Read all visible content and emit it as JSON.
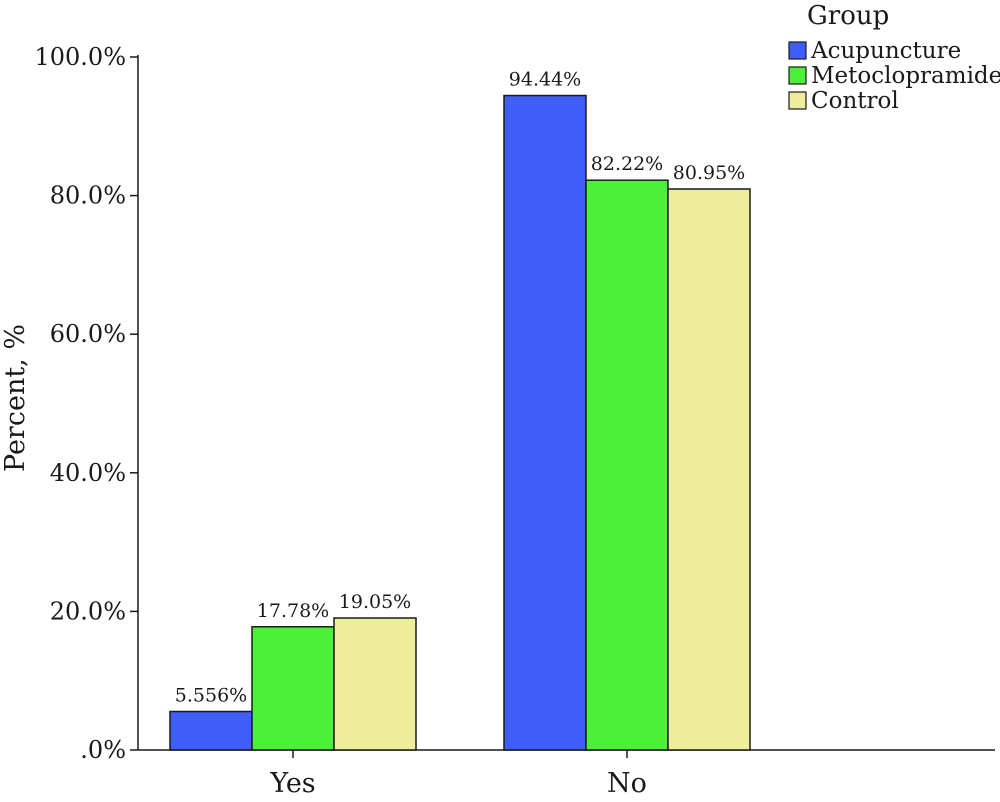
{
  "chart_data": {
    "type": "bar",
    "categories": [
      "Yes",
      "No"
    ],
    "series": [
      {
        "name": "Acupuncture",
        "values": [
          5.556,
          94.44
        ],
        "labels": [
          "5.556%",
          "94.44%"
        ],
        "color": "#3f5ef7"
      },
      {
        "name": "Metoclopramide",
        "values": [
          17.78,
          82.22
        ],
        "labels": [
          "17.78%",
          "82.22%"
        ],
        "color": "#4cf03a"
      },
      {
        "name": "Control",
        "values": [
          19.05,
          80.95
        ],
        "labels": [
          "19.05%",
          "80.95%"
        ],
        "color": "#eeee9a"
      }
    ],
    "ylabel": "Percent, %",
    "ylim": [
      0,
      100
    ],
    "yticks": [
      0,
      20,
      40,
      60,
      80,
      100
    ],
    "ytick_labels": [
      ".0%",
      "20.0%",
      "40.0%",
      "60.0%",
      "80.0%",
      "100.0%"
    ],
    "legend": {
      "title": "Group",
      "placement": "top-right"
    },
    "grid": false
  }
}
